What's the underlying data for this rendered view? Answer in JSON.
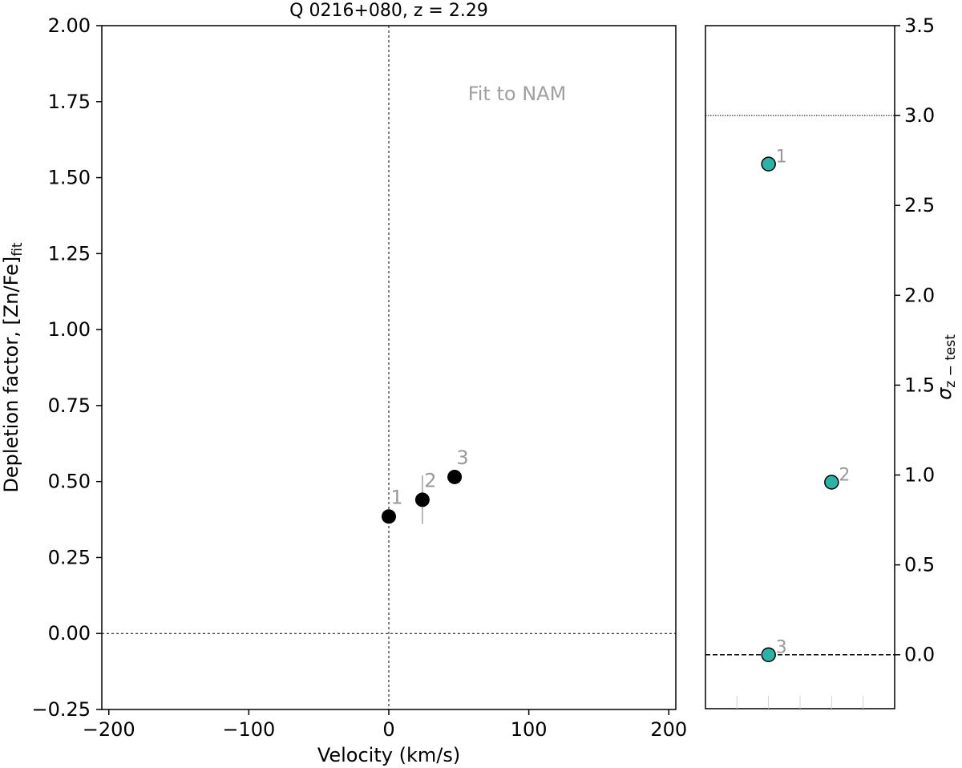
{
  "chart_data": [
    {
      "type": "scatter",
      "title": "Q 0216+080, z = 2.29",
      "xlabel": "Velocity (km/s)",
      "ylabel": "Depletion factor, [Zn/Fe]",
      "ylabel_sub": "fit",
      "annotation": "Fit to NAM",
      "xlim": [
        -205,
        205
      ],
      "ylim": [
        -0.25,
        2.0
      ],
      "xticks": [
        -200,
        -100,
        0,
        100,
        200
      ],
      "xtick_labels": [
        "−200",
        "−100",
        "0",
        "100",
        "200"
      ],
      "yticks": [
        -0.25,
        0.0,
        0.25,
        0.5,
        0.75,
        1.0,
        1.25,
        1.5,
        1.75,
        2.0
      ],
      "ytick_labels": [
        "−0.25",
        "0.00",
        "0.25",
        "0.50",
        "0.75",
        "1.00",
        "1.25",
        "1.50",
        "1.75",
        "2.00"
      ],
      "reference_lines": {
        "x": 0,
        "y": 0
      },
      "points": [
        {
          "label": "1",
          "x": 0,
          "y": 0.385,
          "yerr": 0.0
        },
        {
          "label": "2",
          "x": 24,
          "y": 0.44,
          "yerr": 0.08
        },
        {
          "label": "3",
          "x": 47,
          "y": 0.515,
          "yerr": 0.0
        }
      ],
      "marker_color": "#000000",
      "label_color": "#999999"
    },
    {
      "type": "scatter",
      "ylabel": "σ",
      "ylabel_sub": "z − test",
      "ylim": [
        -0.3,
        3.5
      ],
      "yticks": [
        0.0,
        0.5,
        1.0,
        1.5,
        2.0,
        2.5,
        3.0,
        3.5
      ],
      "ytick_labels": [
        "0.0",
        "0.5",
        "1.0",
        "1.5",
        "2.0",
        "2.5",
        "3.0",
        "3.5"
      ],
      "y_axis_side": "right",
      "reference_lines": {
        "y_dotted": 3.0,
        "y_dashed": 0.0
      },
      "points": [
        {
          "label": "1",
          "x": 2,
          "y": 2.73
        },
        {
          "label": "2",
          "x": 4,
          "y": 0.96
        },
        {
          "label": "3",
          "x": 2,
          "y": 0.0
        }
      ],
      "xlim": [
        0,
        6
      ],
      "marker_color": "#2ab3a6",
      "label_color": "#999999"
    }
  ]
}
